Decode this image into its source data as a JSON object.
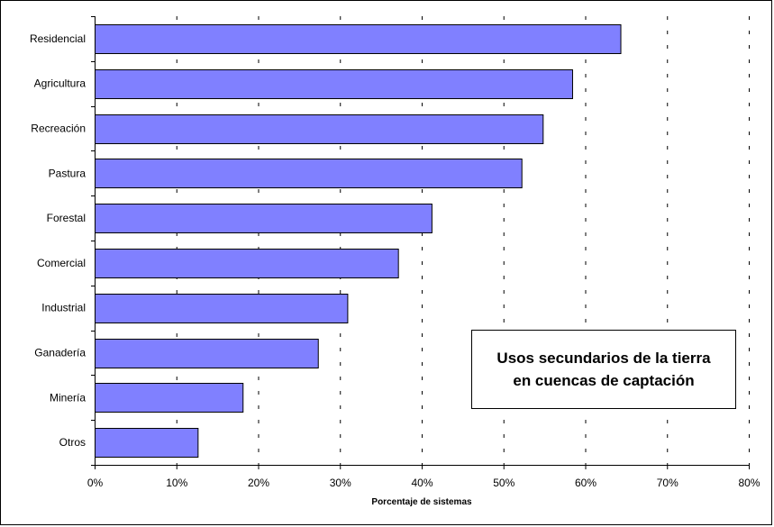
{
  "chart_data": {
    "type": "bar",
    "orientation": "horizontal",
    "title": "Usos secundarios de la tierra\nen cuencas de captación",
    "xlabel": "Porcentaje de sistemas",
    "ylabel": "",
    "categories": [
      "Residencial",
      "Agricultura",
      "Recreación",
      "Pastura",
      "Forestal",
      "Comercial",
      "Industrial",
      "Ganadería",
      "Minería",
      "Otros"
    ],
    "values": [
      64.3,
      58.4,
      54.8,
      52.2,
      41.2,
      37.1,
      30.9,
      27.3,
      18.1,
      12.6
    ],
    "xlim": [
      0,
      80
    ],
    "xticks": [
      "0%",
      "10%",
      "20%",
      "30%",
      "40%",
      "50%",
      "60%",
      "70%",
      "80%"
    ],
    "grid": "vertical-dashed",
    "bar_color": "#8080ff",
    "bar_edge_color": "#000000"
  }
}
